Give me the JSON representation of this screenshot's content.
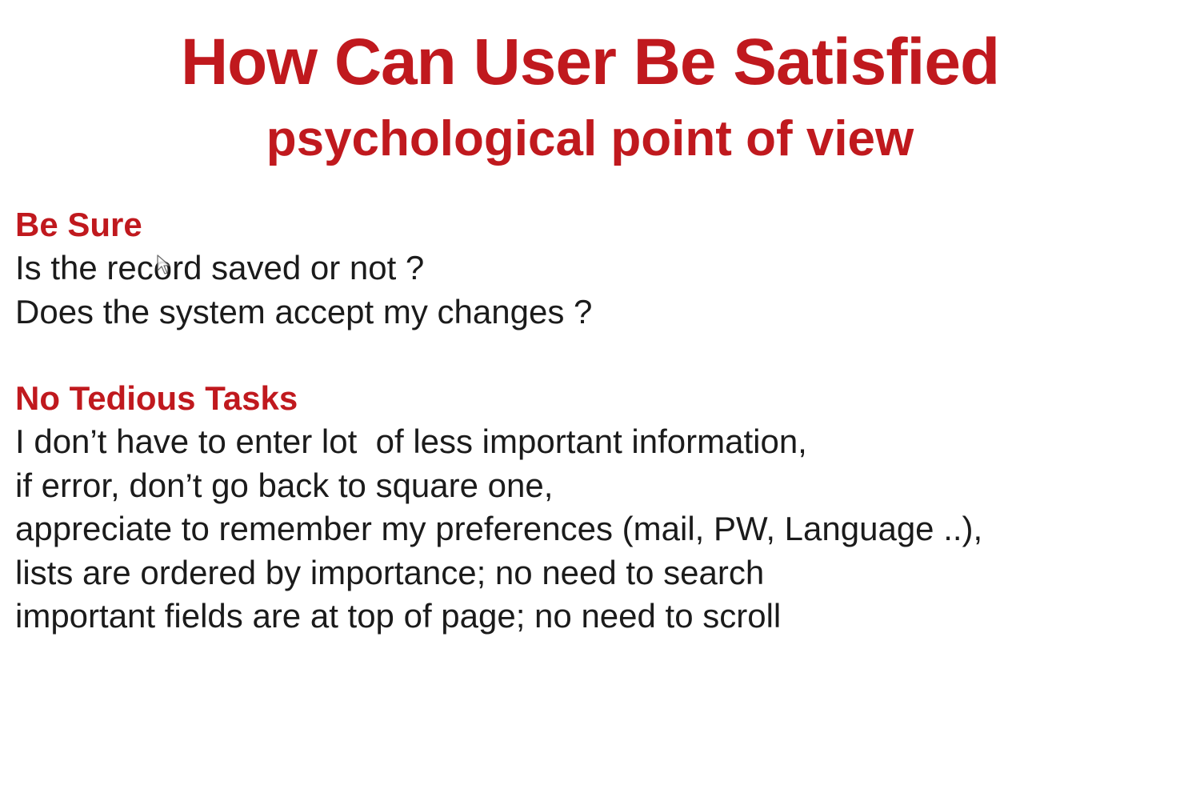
{
  "title": "How Can User Be Satisfied",
  "subtitle": "psychological point of view",
  "sections": [
    {
      "heading": "Be Sure",
      "lines": [
        "Is the record saved or not ?",
        "Does the system accept my changes ?"
      ]
    },
    {
      "heading": "No Tedious Tasks",
      "lines": [
        "I don’t have to enter lot  of less important information,",
        "if error, don’t go back to square one,",
        "appreciate to remember my preferences (mail, PW, Language ..),",
        "lists are ordered by importance; no need to search",
        "important fields are at top of page; no need to scroll"
      ]
    }
  ],
  "colors": {
    "accent": "#c0191e",
    "body_text": "#1b1b1b",
    "background": "#ffffff"
  },
  "icons": {
    "cursor": "mouse-pointer-icon"
  }
}
